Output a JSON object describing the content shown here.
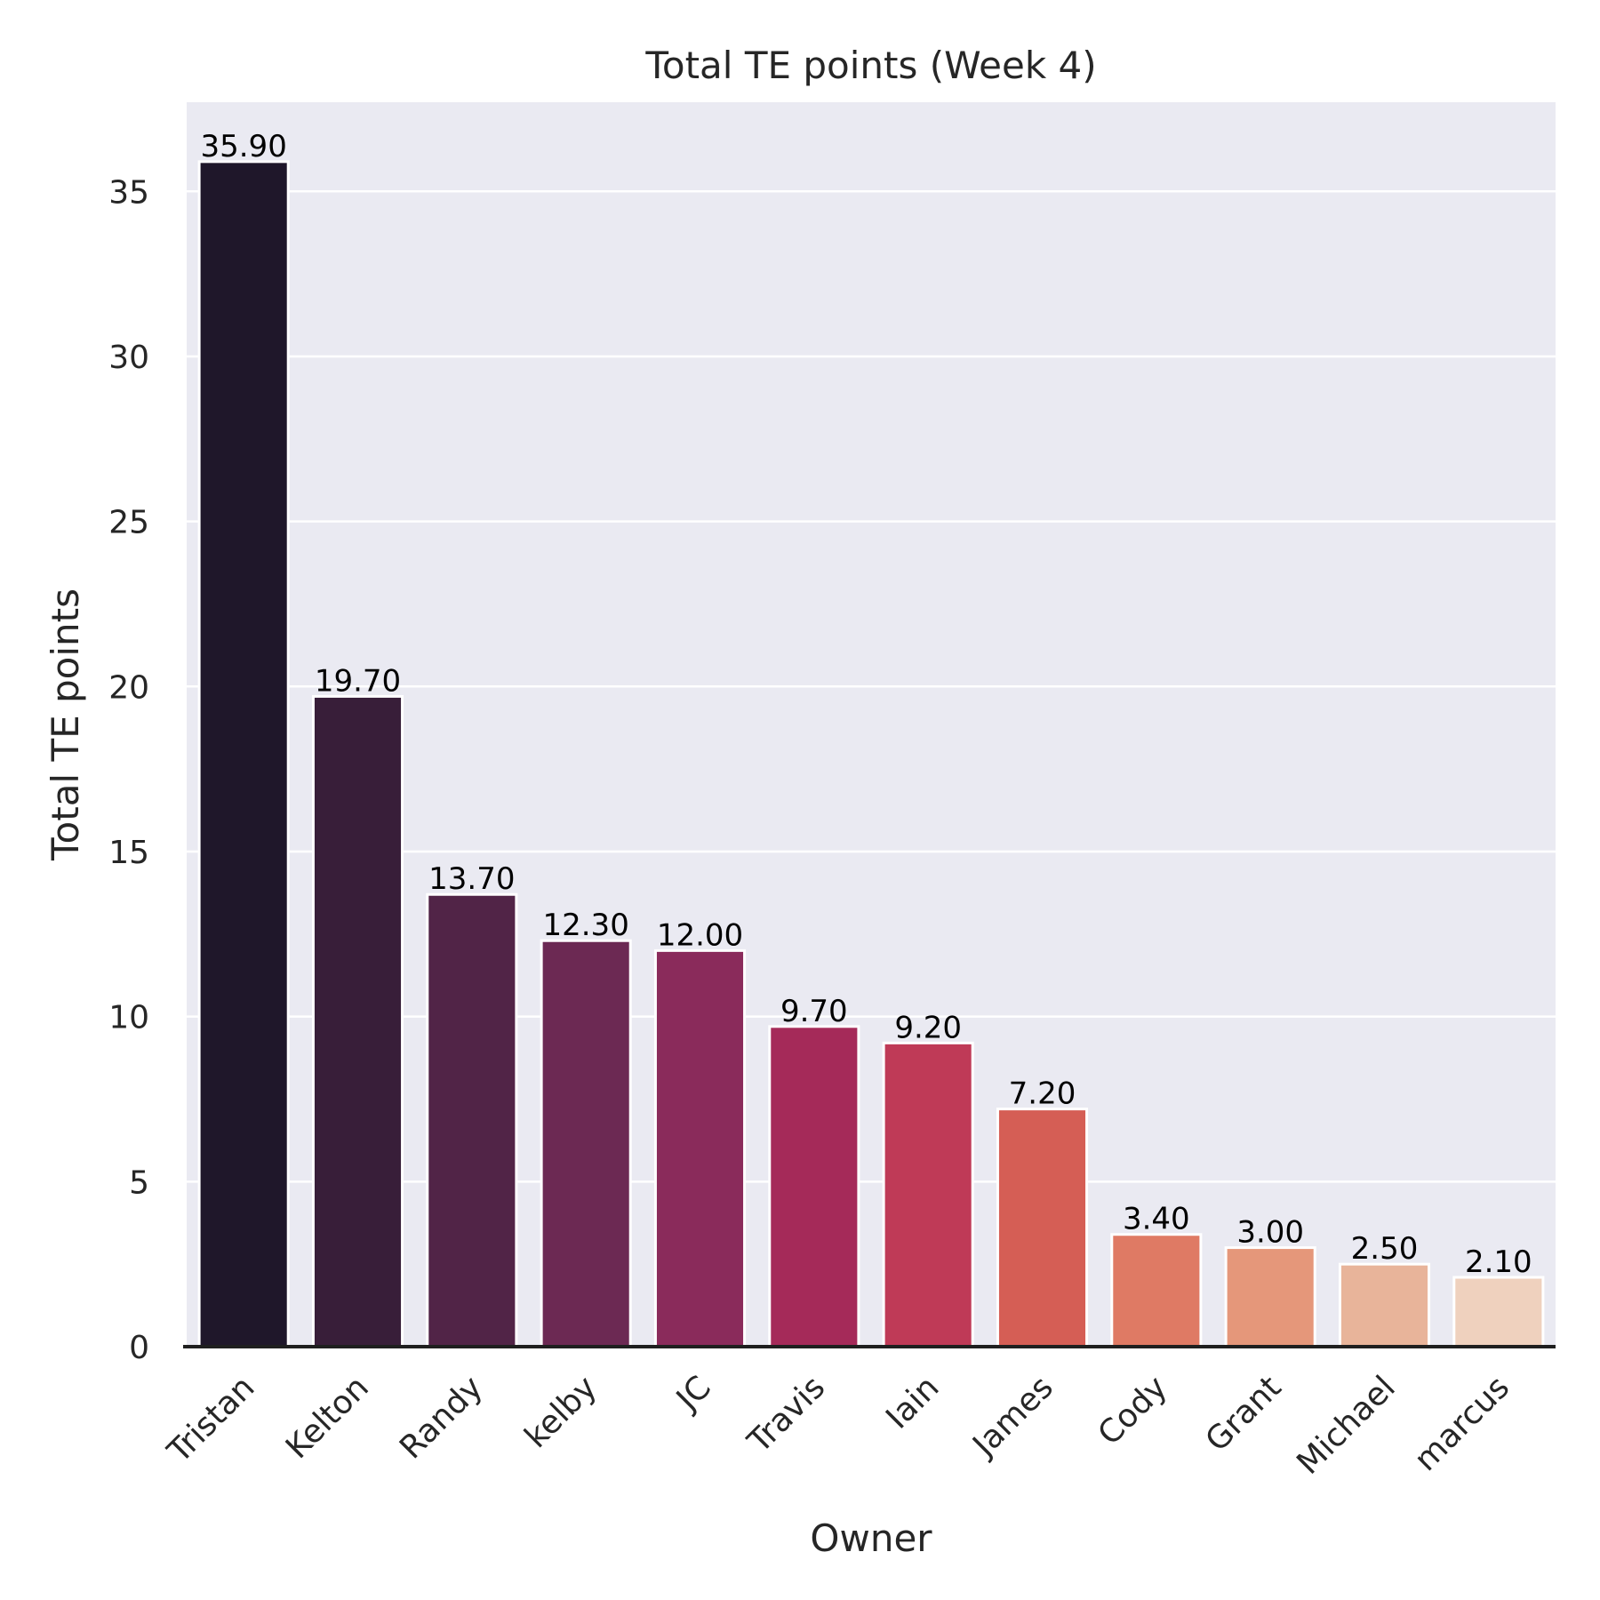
{
  "chart_data": {
    "type": "bar",
    "title": "Total TE points (Week 4)",
    "xlabel": "Owner",
    "ylabel": "Total TE points",
    "categories": [
      "Tristan",
      "Kelton",
      "Randy",
      "kelby",
      "JC",
      "Travis",
      "Iain",
      "James",
      "Cody",
      "Grant",
      "Michael",
      "marcus"
    ],
    "values": [
      35.9,
      19.7,
      13.7,
      12.3,
      12.0,
      9.7,
      9.2,
      7.2,
      3.4,
      3.0,
      2.5,
      2.1
    ],
    "value_labels": [
      "35.90",
      "19.70",
      "13.70",
      "12.30",
      "12.00",
      "9.70",
      "9.20",
      "7.20",
      "3.40",
      "3.00",
      "2.50",
      "2.10"
    ],
    "ylim": [
      0,
      37.7
    ],
    "yticks": [
      0,
      5,
      10,
      15,
      20,
      25,
      30,
      35
    ],
    "ytick_labels": [
      "0",
      "5",
      "10",
      "15",
      "20",
      "25",
      "30",
      "35"
    ],
    "grid": "horizontal",
    "legend": "none",
    "background_color": "#EAEAF2",
    "bar_colors": [
      "#1F172A",
      "#381E39",
      "#512447",
      "#6C2953",
      "#8A2B5B",
      "#A52A59",
      "#BF3A57",
      "#D55E55",
      "#DF7A64",
      "#E5977A",
      "#E8B49A",
      "#EFD1BE"
    ]
  }
}
